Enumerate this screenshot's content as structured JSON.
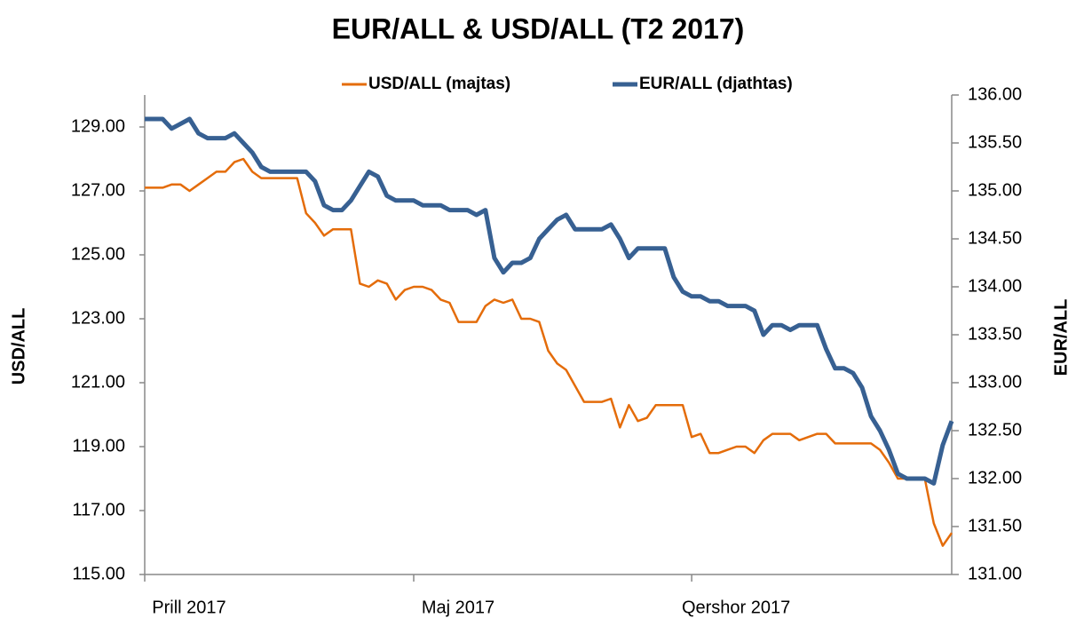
{
  "chart_data": {
    "type": "line",
    "title": "EUR/ALL & USD/ALL  (T2 2017)",
    "y_label": "USD/ALL",
    "y2_label": "EUR/ALL",
    "categories": [
      "Prill 2017",
      null,
      null,
      null,
      null,
      null,
      null,
      null,
      null,
      null,
      null,
      null,
      null,
      null,
      null,
      null,
      null,
      null,
      null,
      null,
      null,
      null,
      null,
      null,
      null,
      null,
      null,
      null,
      null,
      null,
      "Maj 2017",
      null,
      null,
      null,
      null,
      null,
      null,
      null,
      null,
      null,
      null,
      null,
      null,
      null,
      null,
      null,
      null,
      null,
      null,
      null,
      null,
      null,
      null,
      null,
      null,
      null,
      null,
      null,
      null,
      null,
      null,
      "Qershor 2017",
      null,
      null,
      null,
      null,
      null,
      null,
      null,
      null,
      null,
      null,
      null,
      null,
      null,
      null,
      null,
      null,
      null,
      null,
      null,
      null,
      null,
      null,
      null,
      null,
      null,
      null,
      null,
      null,
      null
    ],
    "series": [
      {
        "name": "USD/ALL (majtas)",
        "color": "#e46c0a",
        "axis": "y",
        "values": [
          127.1,
          127.1,
          127.1,
          127.2,
          127.2,
          127.0,
          127.2,
          127.4,
          127.6,
          127.6,
          127.9,
          128.0,
          127.6,
          127.4,
          127.4,
          127.4,
          127.4,
          127.4,
          126.3,
          126.0,
          125.6,
          125.8,
          125.8,
          125.8,
          124.1,
          124.0,
          124.2,
          124.1,
          123.6,
          123.9,
          124.0,
          124.0,
          123.9,
          123.6,
          123.5,
          122.9,
          122.9,
          122.9,
          123.4,
          123.6,
          123.5,
          123.6,
          123.0,
          123.0,
          122.9,
          122.0,
          121.6,
          121.4,
          120.9,
          120.4,
          120.4,
          120.4,
          120.5,
          119.6,
          120.3,
          119.8,
          119.9,
          120.3,
          120.3,
          120.3,
          120.3,
          119.3,
          119.4,
          118.8,
          118.8,
          118.9,
          119.0,
          119.0,
          118.8,
          119.2,
          119.4,
          119.4,
          119.4,
          119.2,
          119.3,
          119.4,
          119.4,
          119.1,
          119.1,
          119.1,
          119.1,
          119.1,
          118.9,
          118.5,
          118.0,
          118.0,
          118.0,
          118.0,
          116.6,
          115.9,
          116.3
        ]
      },
      {
        "name": "EUR/ALL (djathtas)",
        "color": "#376092",
        "axis": "y2",
        "values": [
          135.75,
          135.75,
          135.75,
          135.65,
          135.7,
          135.75,
          135.6,
          135.55,
          135.55,
          135.55,
          135.6,
          135.5,
          135.4,
          135.25,
          135.2,
          135.2,
          135.2,
          135.2,
          135.2,
          135.1,
          134.85,
          134.8,
          134.8,
          134.9,
          135.05,
          135.2,
          135.15,
          134.95,
          134.9,
          134.9,
          134.9,
          134.85,
          134.85,
          134.85,
          134.8,
          134.8,
          134.8,
          134.75,
          134.8,
          134.3,
          134.15,
          134.25,
          134.25,
          134.3,
          134.5,
          134.6,
          134.7,
          134.75,
          134.6,
          134.6,
          134.6,
          134.6,
          134.65,
          134.5,
          134.3,
          134.4,
          134.4,
          134.4,
          134.4,
          134.1,
          133.95,
          133.9,
          133.9,
          133.85,
          133.85,
          133.8,
          133.8,
          133.8,
          133.75,
          133.5,
          133.6,
          133.6,
          133.55,
          133.6,
          133.6,
          133.6,
          133.35,
          133.15,
          133.15,
          133.1,
          132.95,
          132.65,
          132.5,
          132.3,
          132.05,
          132.0,
          132.0,
          132.0,
          131.95,
          132.35,
          132.6
        ]
      }
    ],
    "ylim": [
      115,
      130
    ],
    "yticks": [
      {
        "value": 115,
        "label": "115.00"
      },
      {
        "value": 117,
        "label": "117.00"
      },
      {
        "value": 119,
        "label": "119.00"
      },
      {
        "value": 121,
        "label": "121.00"
      },
      {
        "value": 123,
        "label": "123.00"
      },
      {
        "value": 125,
        "label": "125.00"
      },
      {
        "value": 127,
        "label": "127.00"
      },
      {
        "value": 129,
        "label": "129.00"
      }
    ],
    "y2lim": [
      131,
      136
    ],
    "y2ticks": [
      {
        "value": 131,
        "label": "131.00"
      },
      {
        "value": 131.5,
        "label": "131.50"
      },
      {
        "value": 132,
        "label": "132.00"
      },
      {
        "value": 132.5,
        "label": "132.50"
      },
      {
        "value": 133,
        "label": "133.00"
      },
      {
        "value": 133.5,
        "label": "133.50"
      },
      {
        "value": 134,
        "label": "134.00"
      },
      {
        "value": 134.5,
        "label": "134.50"
      },
      {
        "value": 135,
        "label": "135.00"
      },
      {
        "value": 135.5,
        "label": "135.50"
      },
      {
        "value": 136,
        "label": "136.00"
      }
    ],
    "grid": false,
    "legend": "top"
  }
}
